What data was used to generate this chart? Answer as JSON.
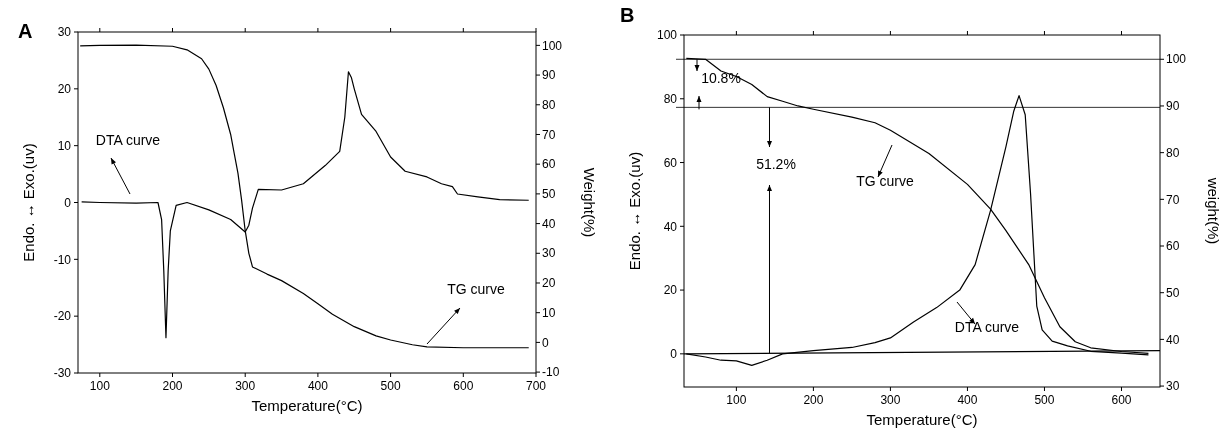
{
  "chart_data": [
    {
      "type": "line",
      "title": "A",
      "xlabel": "Temperature(°C)",
      "ylabel": "Endo. ↔ Exo.(uv)",
      "y2label": "Weight(%)",
      "xlim": [
        70,
        700
      ],
      "xticks": [
        100,
        200,
        300,
        400,
        500,
        600,
        700
      ],
      "ylim": [
        -30,
        30
      ],
      "yticks": [
        -30,
        -20,
        -10,
        0,
        10,
        20,
        30
      ],
      "y2lim": [
        -10.3,
        104.5
      ],
      "y2ticks": [
        -10,
        0,
        10,
        20,
        30,
        40,
        50,
        60,
        70,
        80,
        90,
        100
      ],
      "grid": false,
      "series": [
        {
          "color": "#000000",
          "axis": "y",
          "x": [
            75,
            100,
            150,
            180,
            185,
            188,
            191,
            194,
            197,
            205,
            220,
            250,
            280,
            300,
            305,
            310,
            318,
            350,
            380,
            410,
            430,
            437,
            442,
            446,
            450,
            460,
            470,
            480,
            500,
            520,
            550,
            570,
            585,
            592,
            620,
            650,
            690
          ],
          "values": [
            0.1,
            0,
            -0.1,
            0,
            -3,
            -12,
            -23.8,
            -12,
            -5,
            -0.5,
            0,
            -1.3,
            -3,
            -5.2,
            -4,
            -1,
            2.3,
            2.2,
            3.3,
            6.5,
            9,
            15,
            23,
            22,
            20,
            15.5,
            14,
            12.5,
            8,
            5.5,
            4.5,
            3.3,
            2.8,
            1.5,
            1,
            0.5,
            0.4
          ]
        },
        {
          "color": "#000000",
          "axis": "y2",
          "x": [
            73,
            100,
            150,
            200,
            220,
            240,
            250,
            260,
            270,
            280,
            285,
            290,
            295,
            300,
            305,
            310,
            330,
            350,
            380,
            400,
            420,
            450,
            480,
            500,
            530,
            550,
            600,
            690
          ],
          "values": [
            99.8,
            100,
            100.1,
            99.7,
            98.5,
            95.5,
            92,
            86.5,
            79,
            70,
            63.5,
            57,
            48,
            37.6,
            30,
            25.4,
            23,
            20.8,
            16.5,
            13,
            9.5,
            5.3,
            2.2,
            0.8,
            -0.8,
            -1.5,
            -1.8,
            -1.8
          ]
        }
      ],
      "annotations": [
        "DTA curve",
        "TG curve"
      ]
    },
    {
      "type": "line",
      "title": "B",
      "xlabel": "Temperature(°C)",
      "ylabel": "Endo. ↔ Exo.(uv)",
      "y2label": "weight(%)",
      "xlim": [
        32,
        650
      ],
      "xticks": [
        100,
        200,
        300,
        400,
        500,
        600
      ],
      "ylim": [
        -10.4,
        100
      ],
      "yticks": [
        0,
        20,
        40,
        60,
        80,
        100
      ],
      "y2lim": [
        29.8,
        105.2
      ],
      "y2ticks": [
        30,
        40,
        50,
        60,
        70,
        80,
        90,
        100
      ],
      "grid": false,
      "series": [
        {
          "color": "#000000",
          "axis": "y",
          "x": [
            35,
            60,
            80,
            100,
            120,
            140,
            160,
            200,
            250,
            280,
            300,
            330,
            360,
            390,
            410,
            430,
            450,
            460,
            467,
            475,
            482,
            490,
            497,
            510,
            530,
            560,
            600,
            635
          ],
          "values": [
            0,
            -1,
            -2,
            -2.2,
            -3.6,
            -2,
            0,
            1,
            2,
            3.5,
            5,
            10,
            14.5,
            20,
            28,
            45,
            65,
            76,
            81,
            75,
            50,
            15,
            7.5,
            4,
            2.5,
            0.8,
            0.2,
            -0.3
          ]
        },
        {
          "color": "#000000",
          "axis": "y2",
          "x": [
            35,
            60,
            80,
            100,
            120,
            140,
            160,
            180,
            200,
            250,
            280,
            300,
            350,
            400,
            430,
            450,
            480,
            500,
            520,
            540,
            560,
            600,
            635
          ],
          "values": [
            100.2,
            100,
            97.5,
            96.3,
            94.6,
            92,
            91,
            90,
            89.3,
            87.6,
            86.4,
            84.8,
            79.8,
            73.2,
            67.9,
            63.3,
            55.9,
            48.9,
            42.7,
            39.5,
            38.2,
            37.4,
            37
          ]
        },
        {
          "color": "#000000",
          "axis": "y",
          "x": [
            32,
            650
          ],
          "values": [
            0,
            1
          ]
        }
      ],
      "ref_lines": [
        {
          "axis": "y2",
          "value": 100,
          "color": "#000000"
        },
        {
          "axis": "y2",
          "value": 89.7,
          "color": "#000000"
        }
      ],
      "annotations": [
        "10.8%",
        {
          "text": "51.2%",
          "x": 143,
          "y": 0.2
        },
        "TG curve",
        "DTA curve"
      ]
    }
  ]
}
